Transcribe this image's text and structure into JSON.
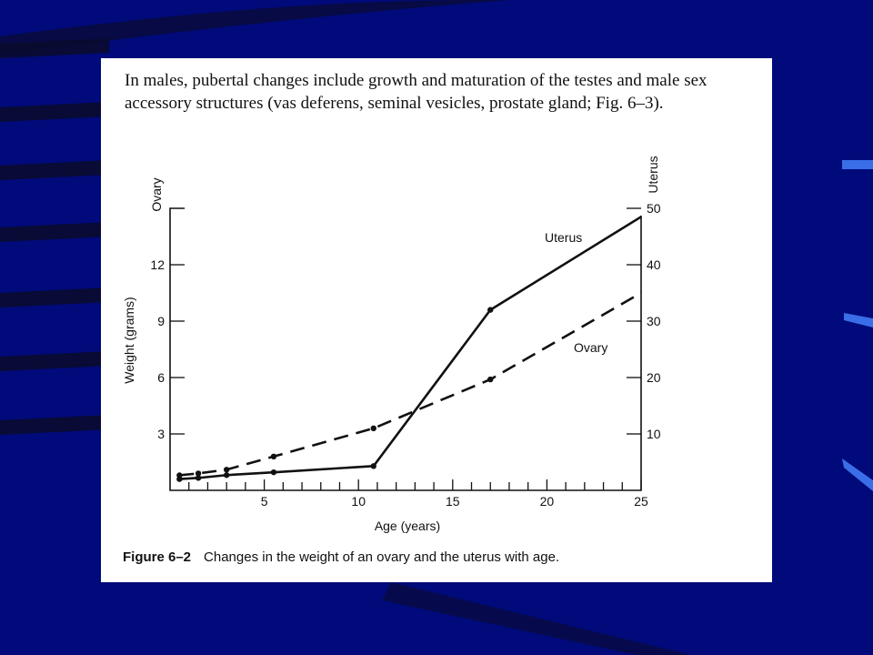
{
  "slide": {
    "background": "#000a7a",
    "stripe_color": "#0a0a2e",
    "accent": "#3a6ee8",
    "intro_text": "In males, pubertal changes include growth and maturation of the testes and male sex accessory structures (vas deferens, seminal vesicles, prostate gland; Fig. 6–3).",
    "figure_label": "Figure 6–2",
    "figure_caption": "Changes in the weight of an ovary and the uterus with age."
  },
  "chart_data": {
    "type": "line",
    "xlabel": "Age (years)",
    "ylabel": "Weight (grams)",
    "left_axis_title": "Ovary",
    "right_axis_title": "Uterus",
    "xlim": [
      0,
      25
    ],
    "x_ticks": [
      5,
      10,
      15,
      20,
      25
    ],
    "y_left_lim": [
      0,
      15
    ],
    "y_left_ticks": [
      3,
      6,
      9,
      12
    ],
    "y_right_lim": [
      0,
      50
    ],
    "y_right_ticks": [
      10,
      20,
      30,
      40,
      50
    ],
    "grid": false,
    "series": [
      {
        "name": "Uterus",
        "axis": "right",
        "style": "solid",
        "x": [
          0.5,
          1.5,
          3,
          5.5,
          10.8,
          17,
          25
        ],
        "y": [
          2,
          2.2,
          2.7,
          3.2,
          4.3,
          32,
          48.5
        ]
      },
      {
        "name": "Ovary",
        "axis": "left",
        "style": "dashed",
        "x": [
          0.5,
          1.5,
          3,
          5.5,
          10.8,
          17,
          25
        ],
        "y": [
          0.8,
          0.9,
          1.1,
          1.8,
          3.3,
          5.9,
          10.5
        ]
      }
    ]
  }
}
